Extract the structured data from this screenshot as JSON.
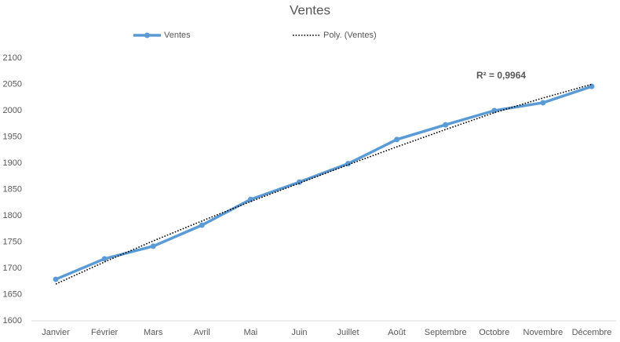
{
  "chart_data": {
    "type": "line",
    "title": "Ventes",
    "categories": [
      "Janvier",
      "Février",
      "Mars",
      "Avril",
      "Mai",
      "Juin",
      "Juillet",
      "Août",
      "Septembre",
      "Octobre",
      "Novembre",
      "Décembre"
    ],
    "series": [
      {
        "name": "Ventes",
        "color": "#5b9bd5",
        "values": [
          1679,
          1718,
          1742,
          1782,
          1831,
          1864,
          1899,
          1945,
          1973,
          2000,
          2015,
          2046
        ]
      },
      {
        "name": "Poly. (Ventes)",
        "color": "#000000",
        "dashed": true,
        "values": [
          1670,
          1712,
          1752,
          1790,
          1827,
          1862,
          1897,
          1931,
          1964,
          1996,
          2024,
          2050
        ]
      }
    ],
    "annotation": "R² = 0,9964",
    "ylim": [
      1600,
      2100
    ],
    "yticks": [
      1600,
      1650,
      1700,
      1750,
      1800,
      1850,
      1900,
      1950,
      2000,
      2050,
      2100
    ],
    "grid": false,
    "legend": "top"
  }
}
